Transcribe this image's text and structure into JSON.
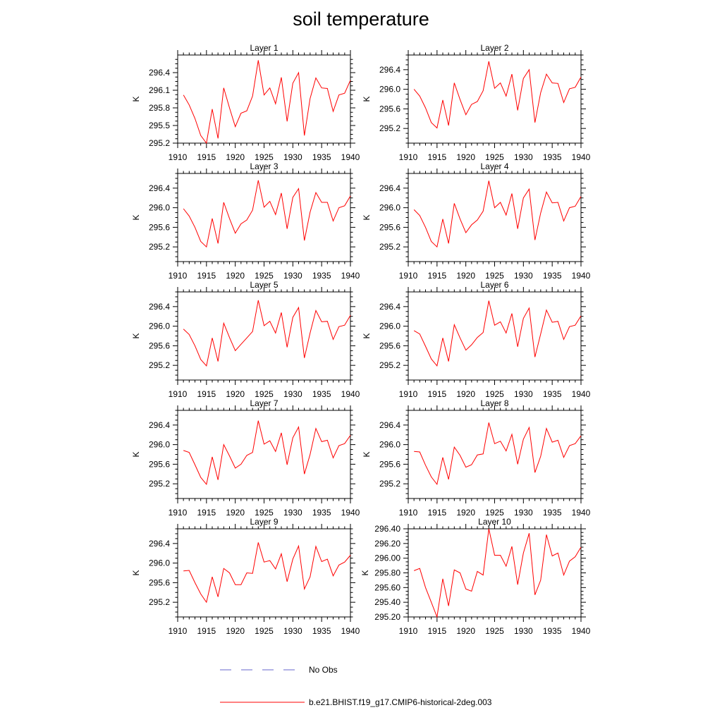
{
  "title": "soil temperature",
  "colors": {
    "model": "#ff0000",
    "obs": "#6666cc",
    "axis": "#000000"
  },
  "legend": [
    {
      "label": "No Obs",
      "style": "dashed",
      "color": "#6666cc"
    },
    {
      "label": "b.e21.BHIST.f19_g17.CMIP6-historical-2deg.003",
      "style": "solid",
      "color": "#ff0000"
    }
  ],
  "chart_data": [
    {
      "type": "line",
      "title": "Layer 1",
      "xlabel": "",
      "ylabel": "K",
      "xlim": [
        1910,
        1940
      ],
      "ylim": [
        295.2,
        296.7
      ],
      "xticks": [
        "1910",
        "1915",
        "1920",
        "1925",
        "1930",
        "1935",
        "1940"
      ],
      "yticks": [
        "295.2",
        "295.5",
        "295.8",
        "296.1",
        "296.4"
      ],
      "x": [
        1911,
        1912,
        1913,
        1914,
        1915,
        1916,
        1917,
        1918,
        1919,
        1920,
        1921,
        1922,
        1923,
        1924,
        1925,
        1926,
        1927,
        1928,
        1929,
        1930,
        1931,
        1932,
        1933,
        1934,
        1935,
        1936,
        1937,
        1938,
        1939,
        1940
      ],
      "series": [
        {
          "name": "b.e21.BHIST.f19_g17.CMIP6-historical-2deg.003",
          "values": [
            296.02,
            295.85,
            295.62,
            295.33,
            295.2,
            295.78,
            295.28,
            296.14,
            295.8,
            295.48,
            295.71,
            295.75,
            296.0,
            296.61,
            296.02,
            296.14,
            295.87,
            296.32,
            295.57,
            296.22,
            296.4,
            295.33,
            295.96,
            296.31,
            296.14,
            296.13,
            295.74,
            296.02,
            296.05,
            296.27
          ]
        }
      ]
    },
    {
      "type": "line",
      "title": "Layer 2",
      "xlabel": "",
      "ylabel": "K",
      "xlim": [
        1910,
        1940
      ],
      "ylim": [
        294.9,
        296.7
      ],
      "xticks": [
        "1910",
        "1915",
        "1920",
        "1925",
        "1930",
        "1935",
        "1940"
      ],
      "yticks": [
        "295.2",
        "295.6",
        "296.0",
        "296.4"
      ],
      "x": [
        1911,
        1912,
        1913,
        1914,
        1915,
        1916,
        1917,
        1918,
        1919,
        1920,
        1921,
        1922,
        1923,
        1924,
        1925,
        1926,
        1927,
        1928,
        1929,
        1930,
        1931,
        1932,
        1933,
        1934,
        1935,
        1936,
        1937,
        1938,
        1939,
        1940
      ],
      "series": [
        {
          "name": "b.e21.BHIST.f19_g17.CMIP6-historical-2deg.003",
          "values": [
            296.0,
            295.86,
            295.62,
            295.32,
            295.21,
            295.78,
            295.26,
            296.13,
            295.79,
            295.48,
            295.69,
            295.75,
            295.97,
            296.57,
            296.02,
            296.13,
            295.86,
            296.31,
            295.57,
            296.22,
            296.4,
            295.32,
            295.93,
            296.31,
            296.13,
            296.12,
            295.73,
            296.01,
            296.04,
            296.25
          ]
        }
      ]
    },
    {
      "type": "line",
      "title": "Layer 3",
      "xlabel": "",
      "ylabel": "K",
      "xlim": [
        1910,
        1940
      ],
      "ylim": [
        294.9,
        296.7
      ],
      "xticks": [
        "1910",
        "1915",
        "1920",
        "1925",
        "1930",
        "1935",
        "1940"
      ],
      "yticks": [
        "295.2",
        "295.6",
        "296.0",
        "296.4"
      ],
      "x": [
        1911,
        1912,
        1913,
        1914,
        1915,
        1916,
        1917,
        1918,
        1919,
        1920,
        1921,
        1922,
        1923,
        1924,
        1925,
        1926,
        1927,
        1928,
        1929,
        1930,
        1931,
        1932,
        1933,
        1934,
        1935,
        1936,
        1937,
        1938,
        1939,
        1940
      ],
      "series": [
        {
          "name": "b.e21.BHIST.f19_g17.CMIP6-historical-2deg.003",
          "values": [
            295.98,
            295.83,
            295.6,
            295.31,
            295.2,
            295.78,
            295.27,
            296.11,
            295.78,
            295.48,
            295.67,
            295.75,
            295.95,
            296.56,
            296.01,
            296.13,
            295.86,
            296.3,
            295.57,
            296.21,
            296.39,
            295.33,
            295.91,
            296.31,
            296.11,
            296.11,
            295.73,
            296.0,
            296.04,
            296.24
          ]
        }
      ]
    },
    {
      "type": "line",
      "title": "Layer 4",
      "xlabel": "",
      "ylabel": "K",
      "xlim": [
        1910,
        1940
      ],
      "ylim": [
        294.9,
        296.7
      ],
      "xticks": [
        "1910",
        "1915",
        "1920",
        "1925",
        "1930",
        "1935",
        "1940"
      ],
      "yticks": [
        "295.2",
        "295.6",
        "296.0",
        "296.4"
      ],
      "x": [
        1911,
        1912,
        1913,
        1914,
        1915,
        1916,
        1917,
        1918,
        1919,
        1920,
        1921,
        1922,
        1923,
        1924,
        1925,
        1926,
        1927,
        1928,
        1929,
        1930,
        1931,
        1932,
        1933,
        1934,
        1935,
        1936,
        1937,
        1938,
        1939,
        1940
      ],
      "series": [
        {
          "name": "b.e21.BHIST.f19_g17.CMIP6-historical-2deg.003",
          "values": [
            295.96,
            295.84,
            295.6,
            295.31,
            295.2,
            295.77,
            295.27,
            296.09,
            295.77,
            295.49,
            295.65,
            295.75,
            295.93,
            296.55,
            296.0,
            296.11,
            295.85,
            296.29,
            295.57,
            296.2,
            296.38,
            295.34,
            295.89,
            296.32,
            296.1,
            296.11,
            295.73,
            296.0,
            296.03,
            296.23
          ]
        }
      ]
    },
    {
      "type": "line",
      "title": "Layer 5",
      "xlabel": "",
      "ylabel": "K",
      "xlim": [
        1910,
        1940
      ],
      "ylim": [
        294.9,
        296.7
      ],
      "xticks": [
        "1910",
        "1915",
        "1920",
        "1925",
        "1930",
        "1935",
        "1940"
      ],
      "yticks": [
        "295.2",
        "295.6",
        "296.0",
        "296.4"
      ],
      "x": [
        1911,
        1912,
        1913,
        1914,
        1915,
        1916,
        1917,
        1918,
        1919,
        1920,
        1921,
        1922,
        1923,
        1924,
        1925,
        1926,
        1927,
        1928,
        1929,
        1930,
        1931,
        1932,
        1933,
        1934,
        1935,
        1936,
        1937,
        1938,
        1939,
        1940
      ],
      "series": [
        {
          "name": "b.e21.BHIST.f19_g17.CMIP6-historical-2deg.003",
          "values": [
            295.94,
            295.83,
            295.6,
            295.32,
            295.19,
            295.76,
            295.28,
            296.06,
            295.77,
            295.5,
            295.63,
            295.76,
            295.89,
            296.53,
            296.01,
            296.1,
            295.86,
            296.28,
            295.57,
            296.18,
            296.38,
            295.35,
            295.86,
            296.32,
            296.09,
            296.1,
            295.73,
            295.99,
            296.02,
            296.22
          ]
        }
      ]
    },
    {
      "type": "line",
      "title": "Layer 6",
      "xlabel": "",
      "ylabel": "K",
      "xlim": [
        1910,
        1940
      ],
      "ylim": [
        294.9,
        296.7
      ],
      "xticks": [
        "1910",
        "1915",
        "1920",
        "1925",
        "1930",
        "1935",
        "1940"
      ],
      "yticks": [
        "295.2",
        "295.6",
        "296.0",
        "296.4"
      ],
      "x": [
        1911,
        1912,
        1913,
        1914,
        1915,
        1916,
        1917,
        1918,
        1919,
        1920,
        1921,
        1922,
        1923,
        1924,
        1925,
        1926,
        1927,
        1928,
        1929,
        1930,
        1931,
        1932,
        1933,
        1934,
        1935,
        1936,
        1937,
        1938,
        1939,
        1940
      ],
      "series": [
        {
          "name": "b.e21.BHIST.f19_g17.CMIP6-historical-2deg.003",
          "values": [
            295.91,
            295.84,
            295.59,
            295.33,
            295.19,
            295.76,
            295.28,
            296.03,
            295.76,
            295.51,
            295.62,
            295.77,
            295.87,
            296.52,
            296.02,
            296.09,
            295.86,
            296.26,
            295.58,
            296.16,
            296.37,
            295.37,
            295.84,
            296.33,
            296.08,
            296.1,
            295.73,
            295.99,
            296.02,
            296.21
          ]
        }
      ]
    },
    {
      "type": "line",
      "title": "Layer 7",
      "xlabel": "",
      "ylabel": "K",
      "xlim": [
        1910,
        1940
      ],
      "ylim": [
        294.9,
        296.7
      ],
      "xticks": [
        "1910",
        "1915",
        "1920",
        "1925",
        "1930",
        "1935",
        "1940"
      ],
      "yticks": [
        "295.2",
        "295.6",
        "296.0",
        "296.4"
      ],
      "x": [
        1911,
        1912,
        1913,
        1914,
        1915,
        1916,
        1917,
        1918,
        1919,
        1920,
        1921,
        1922,
        1923,
        1924,
        1925,
        1926,
        1927,
        1928,
        1929,
        1930,
        1931,
        1932,
        1933,
        1934,
        1935,
        1936,
        1937,
        1938,
        1939,
        1940
      ],
      "series": [
        {
          "name": "b.e21.BHIST.f19_g17.CMIP6-historical-2deg.003",
          "values": [
            295.88,
            295.84,
            295.59,
            295.33,
            295.19,
            295.75,
            295.28,
            296.0,
            295.77,
            295.52,
            295.6,
            295.78,
            295.84,
            296.49,
            296.01,
            296.08,
            295.86,
            296.24,
            295.59,
            296.14,
            296.36,
            295.4,
            295.8,
            296.33,
            296.06,
            296.09,
            295.73,
            295.98,
            296.02,
            296.19
          ]
        }
      ]
    },
    {
      "type": "line",
      "title": "Layer 8",
      "xlabel": "",
      "ylabel": "K",
      "xlim": [
        1910,
        1940
      ],
      "ylim": [
        294.9,
        296.7
      ],
      "xticks": [
        "1910",
        "1915",
        "1920",
        "1925",
        "1930",
        "1935",
        "1940"
      ],
      "yticks": [
        "295.2",
        "295.6",
        "296.0",
        "296.4"
      ],
      "x": [
        1911,
        1912,
        1913,
        1914,
        1915,
        1916,
        1917,
        1918,
        1919,
        1920,
        1921,
        1922,
        1923,
        1924,
        1925,
        1926,
        1927,
        1928,
        1929,
        1930,
        1931,
        1932,
        1933,
        1934,
        1935,
        1936,
        1937,
        1938,
        1939,
        1940
      ],
      "series": [
        {
          "name": "b.e21.BHIST.f19_g17.CMIP6-historical-2deg.003",
          "values": [
            295.86,
            295.85,
            295.58,
            295.34,
            295.19,
            295.74,
            295.29,
            295.95,
            295.78,
            295.54,
            295.59,
            295.79,
            295.81,
            296.45,
            296.02,
            296.07,
            295.87,
            296.21,
            295.6,
            296.11,
            296.35,
            295.43,
            295.76,
            296.33,
            296.05,
            296.09,
            295.74,
            295.98,
            296.02,
            296.18
          ]
        }
      ]
    },
    {
      "type": "line",
      "title": "Layer 9",
      "xlabel": "",
      "ylabel": "K",
      "xlim": [
        1910,
        1940
      ],
      "ylim": [
        294.9,
        296.7
      ],
      "xticks": [
        "1910",
        "1915",
        "1920",
        "1925",
        "1930",
        "1935",
        "1940"
      ],
      "yticks": [
        "295.2",
        "295.6",
        "296.0",
        "296.4"
      ],
      "x": [
        1911,
        1912,
        1913,
        1914,
        1915,
        1916,
        1917,
        1918,
        1919,
        1920,
        1921,
        1922,
        1923,
        1924,
        1925,
        1926,
        1927,
        1928,
        1929,
        1930,
        1931,
        1932,
        1933,
        1934,
        1935,
        1936,
        1937,
        1938,
        1939,
        1940
      ],
      "series": [
        {
          "name": "b.e21.BHIST.f19_g17.CMIP6-historical-2deg.003",
          "values": [
            295.84,
            295.85,
            295.6,
            295.37,
            295.2,
            295.72,
            295.31,
            295.89,
            295.8,
            295.56,
            295.56,
            295.8,
            295.79,
            296.42,
            296.02,
            296.05,
            295.88,
            296.19,
            295.62,
            296.08,
            296.35,
            295.47,
            295.72,
            296.34,
            296.03,
            296.08,
            295.74,
            295.96,
            296.02,
            296.16
          ]
        }
      ]
    },
    {
      "type": "line",
      "title": "Layer 10",
      "xlabel": "",
      "ylabel": "K",
      "xlim": [
        1910,
        1940
      ],
      "ylim": [
        295.2,
        296.4
      ],
      "xticks": [
        "1910",
        "1915",
        "1920",
        "1925",
        "1930",
        "1935",
        "1940"
      ],
      "yticks": [
        "295.20",
        "295.40",
        "295.60",
        "295.80",
        "296.00",
        "296.20",
        "296.40"
      ],
      "x": [
        1911,
        1912,
        1913,
        1914,
        1915,
        1916,
        1917,
        1918,
        1919,
        1920,
        1921,
        1922,
        1923,
        1924,
        1925,
        1926,
        1927,
        1928,
        1929,
        1930,
        1931,
        1932,
        1933,
        1934,
        1935,
        1936,
        1937,
        1938,
        1939,
        1940
      ],
      "series": [
        {
          "name": "b.e21.BHIST.f19_g17.CMIP6-historical-2deg.003",
          "values": [
            295.83,
            295.86,
            295.6,
            295.4,
            295.2,
            295.72,
            295.35,
            295.84,
            295.8,
            295.58,
            295.55,
            295.82,
            295.77,
            296.4,
            296.04,
            296.04,
            295.89,
            296.16,
            295.64,
            296.07,
            296.34,
            295.5,
            295.7,
            296.32,
            296.03,
            296.07,
            295.77,
            295.96,
            296.02,
            296.15
          ]
        }
      ]
    }
  ]
}
